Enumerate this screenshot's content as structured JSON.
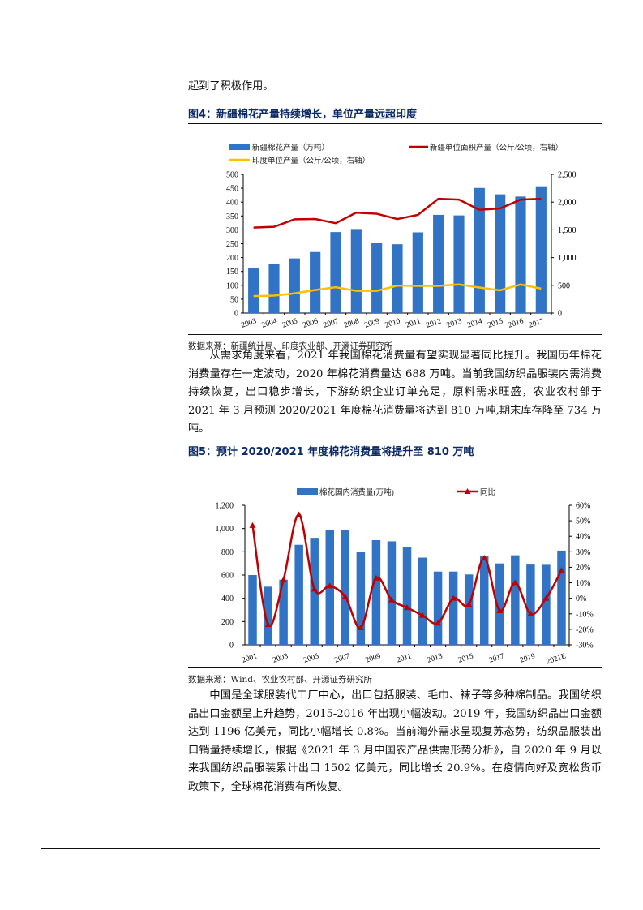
{
  "intro_text": "起到了积极作用。",
  "figure4": {
    "title": "图4：新疆棉花产量持续增长，单位产量远超印度",
    "source": "数据来源：新疆统计局、印度农业部、开源证券研究所"
  },
  "paragraph1": "从需求角度来看，2021 年我国棉花消费量有望实现显著同比提升。我国历年棉花消费量存在一定波动，2020 年棉花消费量达 688 万吨。当前我国纺织品服装内需消费持续恢复，出口稳步增长，下游纺织企业订单充足，原料需求旺盛，农业农村部于 2021 年 3 月预测 2020/2021 年度棉花消费量将达到 810 万吨,期末库存降至 734 万吨。",
  "figure5": {
    "title": "图5：预计 2020/2021 年度棉花消费量将提升至 810 万吨",
    "source": "数据来源：Wind、农业农村部、开源证券研究所"
  },
  "paragraph2": "中国是全球服装代工厂中心，出口包括服装、毛巾、袜子等多种棉制品。我国纺织品出口金额呈上升趋势，2015-2016 年出现小幅波动。2019 年，我国纺织品出口金额达到 1196 亿美元，同比小幅增长 0.8%。当前海外需求呈现复苏态势，纺织品服装出口销量持续增长，根据《2021 年 3 月中国农产品供需形势分析》，自 2020 年 9 月以来我国纺织品服装累计出口 1502 亿美元，同比增长 20.9%。在疫情向好及宽松货币政策下，全球棉花消费有所恢复。",
  "colors": {
    "bar": "#3173c4",
    "red_line": "#c00000",
    "yellow_line": "#ffc000",
    "title_blue": "#0b2a66"
  },
  "chart_data": [
    {
      "type": "bar",
      "title": "新疆棉花产量持续增长，单位产量远超印度",
      "categories": [
        "2003",
        "2004",
        "2005",
        "2006",
        "2007",
        "2008",
        "2009",
        "2010",
        "2011",
        "2012",
        "2013",
        "2014",
        "2015",
        "2016",
        "2017"
      ],
      "series": [
        {
          "name": "新疆棉花产量（万吨）",
          "type": "bar",
          "axis": "left",
          "values": [
            162,
            177,
            197,
            220,
            292,
            303,
            254,
            248,
            291,
            354,
            352,
            451,
            428,
            420,
            457
          ]
        },
        {
          "name": "新疆单位面积产量（公斤/公顷，右轴）",
          "type": "line",
          "axis": "right",
          "values": [
            1540,
            1555,
            1690,
            1695,
            1620,
            1810,
            1790,
            1695,
            1770,
            2060,
            2045,
            1860,
            1885,
            2045,
            2060
          ]
        },
        {
          "name": "印度单位产量（公斤/公顷，右轴）",
          "type": "line",
          "axis": "right",
          "values": [
            305,
            315,
            355,
            415,
            465,
            400,
            400,
            495,
            490,
            490,
            515,
            460,
            410,
            515,
            440
          ]
        }
      ],
      "yleft": {
        "ylim": [
          0,
          500
        ],
        "ticks": [
          "0",
          "50",
          "100",
          "150",
          "200",
          "250",
          "300",
          "350",
          "400",
          "450",
          "500"
        ]
      },
      "yright": {
        "ylim": [
          0,
          2500
        ],
        "ticks": [
          "0",
          "500",
          "1,000",
          "1,500",
          "2,000",
          "2,500"
        ]
      },
      "legend_position": "top",
      "grid": false
    },
    {
      "type": "bar",
      "title": "预计 2020/2021 年度棉花消费量将提升至 810 万吨",
      "categories": [
        "2001",
        "2002",
        "2003",
        "2004",
        "2005",
        "2006",
        "2007",
        "2008",
        "2009",
        "2010",
        "2011",
        "2012",
        "2013",
        "2014",
        "2015",
        "2016",
        "2017",
        "2018",
        "2019",
        "2020",
        "2021E"
      ],
      "x_tick_labels": [
        "2001",
        "2003",
        "2005",
        "2007",
        "2009",
        "2011",
        "2013",
        "2015",
        "2017",
        "2019",
        "2021E"
      ],
      "series": [
        {
          "name": "棉花国内消费量(万吨)",
          "type": "bar",
          "axis": "left",
          "values": [
            600,
            500,
            560,
            860,
            920,
            990,
            985,
            800,
            900,
            890,
            840,
            750,
            630,
            630,
            605,
            760,
            700,
            770,
            690,
            688,
            810
          ]
        },
        {
          "name": "同比",
          "type": "line",
          "axis": "right",
          "unit": "%",
          "values": [
            47,
            -17,
            12,
            54,
            6,
            8,
            1,
            -19,
            13,
            -1,
            -6,
            -11,
            -16,
            0,
            -4,
            26,
            -8,
            10,
            -10,
            0,
            18
          ]
        }
      ],
      "yleft": {
        "ylim": [
          0,
          1200
        ],
        "ticks": [
          "0",
          "200",
          "400",
          "600",
          "800",
          "1,000",
          "1,200"
        ]
      },
      "yright": {
        "ylim": [
          -30,
          60
        ],
        "ticks": [
          "-30%",
          "-20%",
          "-10%",
          "0%",
          "10%",
          "20%",
          "30%",
          "40%",
          "50%",
          "60%"
        ]
      },
      "legend_position": "top",
      "grid": false
    }
  ]
}
